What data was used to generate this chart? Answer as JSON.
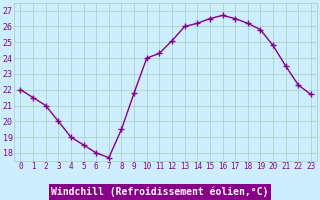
{
  "hours": [
    0,
    1,
    2,
    3,
    4,
    5,
    6,
    7,
    8,
    9,
    10,
    11,
    12,
    13,
    14,
    15,
    16,
    17,
    18,
    19,
    20,
    21,
    22,
    23
  ],
  "values": [
    22.0,
    21.5,
    21.0,
    20.0,
    19.0,
    18.5,
    18.0,
    17.7,
    19.5,
    21.8,
    24.0,
    24.3,
    25.1,
    26.0,
    26.2,
    26.5,
    26.7,
    26.5,
    26.2,
    25.8,
    24.8,
    23.5,
    22.3,
    21.7
  ],
  "line_color": "#880088",
  "marker": "+",
  "markersize": 4,
  "linewidth": 1.0,
  "xlabel": "Windchill (Refroidissement éolien,°C)",
  "xlabel_fontsize": 7,
  "ylim": [
    17.5,
    27.5
  ],
  "yticks": [
    18,
    19,
    20,
    21,
    22,
    23,
    24,
    25,
    26,
    27
  ],
  "xticks": [
    0,
    1,
    2,
    3,
    4,
    5,
    6,
    7,
    8,
    9,
    10,
    11,
    12,
    13,
    14,
    15,
    16,
    17,
    18,
    19,
    20,
    21,
    22,
    23
  ],
  "xlim": [
    -0.5,
    23.5
  ],
  "bg_color": "#cceeff",
  "grid_color": "#aaccbb",
  "tick_color": "#880088",
  "xlabel_bg": "#880088",
  "xlabel_text_color": "#ffffff",
  "tick_fontsize": 5.5,
  "ytick_fontsize": 6
}
